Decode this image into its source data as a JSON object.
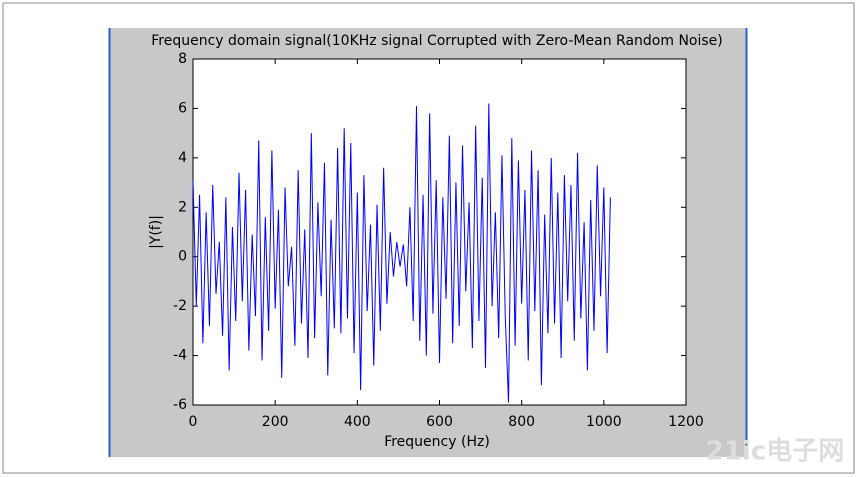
{
  "chart_data": {
    "type": "line",
    "title": "Frequency domain signal(10KHz signal Corrupted with Zero-Mean Random Noise)",
    "x_label": "Frequency (Hz)",
    "y_label": "|Y(f)|",
    "watermark": "21ic电子网",
    "x": [
      0,
      8,
      16,
      24,
      32,
      40,
      48,
      56,
      64,
      72,
      80,
      88,
      96,
      104,
      112,
      120,
      128,
      136,
      144,
      152,
      160,
      168,
      176,
      184,
      192,
      200,
      208,
      216,
      224,
      232,
      240,
      248,
      256,
      264,
      272,
      280,
      288,
      296,
      304,
      312,
      320,
      328,
      336,
      344,
      352,
      360,
      368,
      376,
      384,
      392,
      400,
      408,
      416,
      424,
      432,
      440,
      448,
      456,
      464,
      472,
      480,
      488,
      496,
      504,
      512,
      520,
      528,
      536,
      544,
      552,
      560,
      568,
      576,
      584,
      592,
      600,
      608,
      616,
      624,
      632,
      640,
      648,
      656,
      664,
      672,
      680,
      688,
      696,
      704,
      712,
      720,
      728,
      736,
      744,
      752,
      760,
      768,
      776,
      784,
      792,
      800,
      808,
      816,
      824,
      832,
      840,
      848,
      856,
      864,
      872,
      880,
      888,
      896,
      904,
      912,
      920,
      928,
      936,
      944,
      952,
      960,
      968,
      976,
      984,
      992,
      1000,
      1008,
      1016
    ],
    "series": [
      {
        "name": "|Y(f)|",
        "color": "#0000ff",
        "values": [
          3.1,
          -2.0,
          2.5,
          -3.5,
          1.8,
          -2.8,
          2.9,
          -1.5,
          0.6,
          -3.2,
          2.4,
          -4.6,
          1.2,
          -2.6,
          3.4,
          -1.8,
          2.7,
          -3.8,
          0.9,
          -2.4,
          4.7,
          -4.2,
          1.6,
          -3.0,
          4.3,
          -2.1,
          1.9,
          -4.9,
          2.8,
          -1.2,
          0.4,
          -3.6,
          3.5,
          -2.7,
          1.1,
          -4.1,
          5.0,
          -3.3,
          2.2,
          -1.6,
          3.8,
          -4.8,
          1.5,
          -2.9,
          4.4,
          -3.1,
          5.2,
          -2.5,
          4.6,
          -3.9,
          2.6,
          -5.4,
          3.3,
          -2.2,
          1.3,
          -4.4,
          2.1,
          -3.0,
          3.6,
          -1.9,
          1.0,
          -0.8,
          0.6,
          -0.4,
          0.5,
          -1.2,
          2.0,
          -2.6,
          6.1,
          -3.4,
          2.5,
          -4.0,
          5.8,
          -2.3,
          3.1,
          -4.3,
          2.4,
          -1.7,
          4.9,
          -3.5,
          3.0,
          -2.8,
          4.5,
          -1.4,
          2.2,
          -3.7,
          5.3,
          -2.6,
          3.2,
          -4.5,
          6.2,
          -2.0,
          1.8,
          -3.3,
          4.1,
          -2.4,
          -5.9,
          4.8,
          -3.6,
          3.9,
          -1.9,
          2.7,
          -4.2,
          4.3,
          -2.2,
          3.5,
          -5.2,
          1.7,
          -3.1,
          4.0,
          -2.7,
          2.6,
          -4.1,
          3.3,
          -1.8,
          2.9,
          -3.4,
          4.2,
          -2.5,
          1.4,
          -4.6,
          2.3,
          -3.0,
          3.7,
          -1.6,
          2.8,
          -3.9,
          2.4
        ]
      }
    ],
    "xlim": [
      0,
      1200
    ],
    "xticks": [
      0,
      200,
      400,
      600,
      800,
      1000,
      1200
    ],
    "ylim": [
      -6,
      8
    ],
    "yticks": [
      -6,
      -4,
      -2,
      0,
      2,
      4,
      6,
      8
    ],
    "grid": false
  }
}
